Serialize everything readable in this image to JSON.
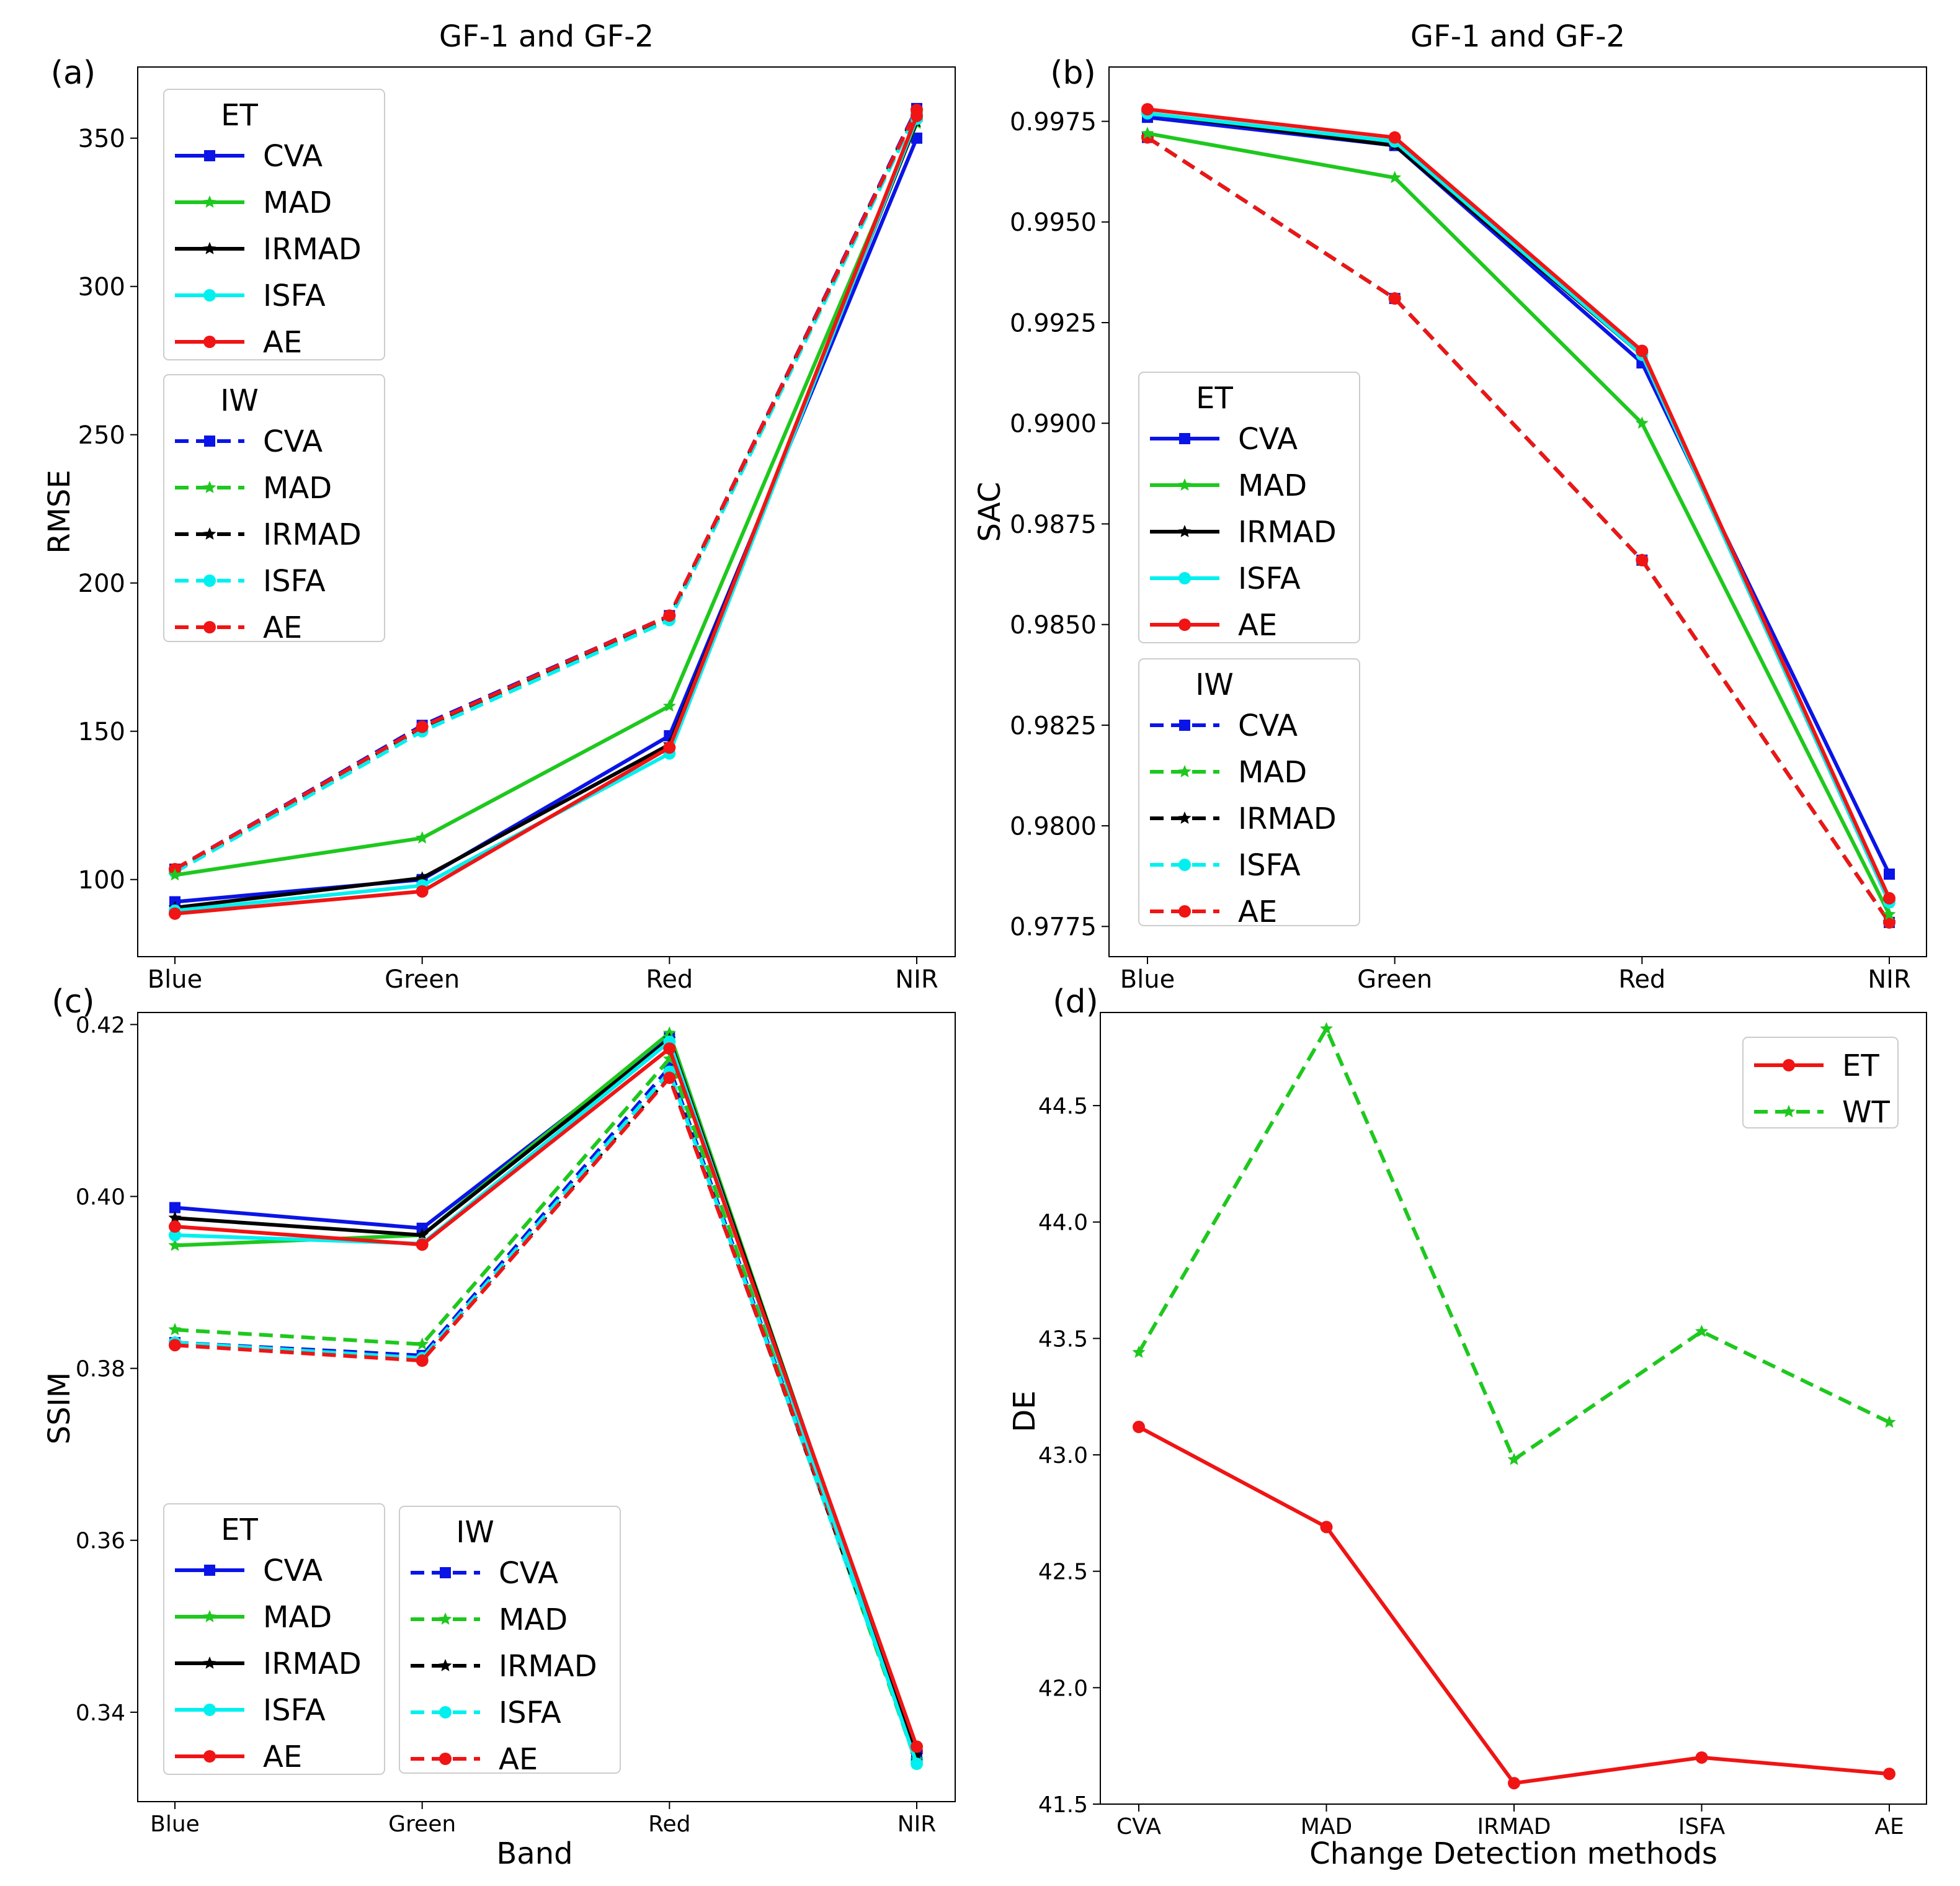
{
  "chart_data": [
    {
      "panel": "(a)",
      "type": "line",
      "title": "GF-1 and GF-2",
      "xlabel": "",
      "ylabel": "RMSE",
      "categories": [
        "Blue",
        "Green",
        "Red",
        "NIR"
      ],
      "ylim": [
        74,
        374
      ],
      "yticks": [
        100,
        150,
        200,
        250,
        300,
        350
      ],
      "ytick_labels": [
        "100",
        "150",
        "200",
        "250",
        "300",
        "350"
      ],
      "legend_groups": [
        {
          "title": "ET",
          "entries": [
            "CVA",
            "MAD",
            "IRMAD",
            "ISFA",
            "AE"
          ]
        },
        {
          "title": "IW",
          "entries": [
            "CVA",
            "MAD",
            "IRMAD",
            "ISFA",
            "AE"
          ]
        }
      ],
      "series": [
        {
          "group": "ET",
          "name": "CVA",
          "values": [
            92.5,
            100.0,
            148.5,
            350.0
          ]
        },
        {
          "group": "ET",
          "name": "MAD",
          "values": [
            101.5,
            114.0,
            158.5,
            355.0
          ]
        },
        {
          "group": "ET",
          "name": "IRMAD",
          "values": [
            90.5,
            100.5,
            145.5,
            355.5
          ]
        },
        {
          "group": "ET",
          "name": "ISFA",
          "values": [
            89.5,
            98.0,
            142.5,
            356.5
          ]
        },
        {
          "group": "ET",
          "name": "AE",
          "values": [
            88.5,
            96.0,
            144.5,
            357.5
          ]
        },
        {
          "group": "IW",
          "name": "CVA",
          "values": [
            103.5,
            152.0,
            189.0,
            360.0
          ]
        },
        {
          "group": "IW",
          "name": "MAD",
          "values": [
            103.0,
            151.0,
            188.0,
            359.0
          ]
        },
        {
          "group": "IW",
          "name": "IRMAD",
          "values": [
            103.0,
            151.0,
            188.5,
            359.5
          ]
        },
        {
          "group": "IW",
          "name": "ISFA",
          "values": [
            102.5,
            150.0,
            187.5,
            358.5
          ]
        },
        {
          "group": "IW",
          "name": "AE",
          "values": [
            103.5,
            151.5,
            189.0,
            359.5
          ]
        }
      ]
    },
    {
      "panel": "(b)",
      "type": "line",
      "title": "GF-1 and GF-2",
      "xlabel": "",
      "ylabel": "SAC",
      "categories": [
        "Blue",
        "Green",
        "Red",
        "NIR"
      ],
      "ylim": [
        0.97675,
        0.99885
      ],
      "yticks": [
        0.9775,
        0.98,
        0.9825,
        0.985,
        0.9875,
        0.99,
        0.9925,
        0.995,
        0.9975
      ],
      "ytick_labels": [
        "0.9775",
        "0.9800",
        "0.9825",
        "0.9850",
        "0.9875",
        "0.9900",
        "0.9925",
        "0.9950",
        "0.9975"
      ],
      "legend_groups": [
        {
          "title": "ET",
          "entries": [
            "CVA",
            "MAD",
            "IRMAD",
            "ISFA",
            "AE"
          ]
        },
        {
          "title": "IW",
          "entries": [
            "CVA",
            "MAD",
            "IRMAD",
            "ISFA",
            "AE"
          ]
        }
      ],
      "series": [
        {
          "group": "ET",
          "name": "CVA",
          "values": [
            0.9976,
            0.9969,
            0.9915,
            0.9788
          ]
        },
        {
          "group": "ET",
          "name": "MAD",
          "values": [
            0.9972,
            0.9961,
            0.99,
            0.9778
          ]
        },
        {
          "group": "ET",
          "name": "IRMAD",
          "values": [
            0.9977,
            0.9969,
            0.9917,
            0.9781
          ]
        },
        {
          "group": "ET",
          "name": "ISFA",
          "values": [
            0.9977,
            0.997,
            0.9917,
            0.9781
          ]
        },
        {
          "group": "ET",
          "name": "AE",
          "values": [
            0.9978,
            0.9971,
            0.9918,
            0.9782
          ]
        },
        {
          "group": "IW",
          "name": "CVA",
          "values": [
            0.9971,
            0.9931,
            0.9866,
            0.9776
          ]
        },
        {
          "group": "IW",
          "name": "MAD",
          "values": [
            0.9971,
            0.9931,
            0.9866,
            0.9776
          ]
        },
        {
          "group": "IW",
          "name": "IRMAD",
          "values": [
            0.9971,
            0.9931,
            0.9866,
            0.9776
          ]
        },
        {
          "group": "IW",
          "name": "ISFA",
          "values": [
            0.9971,
            0.9931,
            0.9866,
            0.9776
          ]
        },
        {
          "group": "IW",
          "name": "AE",
          "values": [
            0.9971,
            0.9931,
            0.9866,
            0.9776
          ]
        }
      ]
    },
    {
      "panel": "(c)",
      "type": "line",
      "title": "",
      "xlabel": "Band",
      "ylabel": "SSIM",
      "categories": [
        "Blue",
        "Green",
        "Red",
        "NIR"
      ],
      "ylim": [
        0.3296,
        0.4214
      ],
      "yticks": [
        0.34,
        0.36,
        0.38,
        0.4,
        0.42
      ],
      "ytick_labels": [
        "0.34",
        "0.36",
        "0.38",
        "0.40",
        "0.42"
      ],
      "legend_groups": [
        {
          "title": "ET",
          "entries": [
            "CVA",
            "MAD",
            "IRMAD",
            "ISFA",
            "AE"
          ]
        },
        {
          "title": "IW",
          "entries": [
            "CVA",
            "MAD",
            "IRMAD",
            "ISFA",
            "AE"
          ]
        }
      ],
      "series": [
        {
          "group": "ET",
          "name": "CVA",
          "values": [
            0.3987,
            0.3963,
            0.4185,
            0.335
          ]
        },
        {
          "group": "ET",
          "name": "MAD",
          "values": [
            0.3943,
            0.3955,
            0.419,
            0.3345
          ]
        },
        {
          "group": "ET",
          "name": "IRMAD",
          "values": [
            0.3975,
            0.3955,
            0.4183,
            0.335
          ]
        },
        {
          "group": "ET",
          "name": "ISFA",
          "values": [
            0.3955,
            0.3945,
            0.418,
            0.334
          ]
        },
        {
          "group": "ET",
          "name": "AE",
          "values": [
            0.3965,
            0.3944,
            0.4172,
            0.336
          ]
        },
        {
          "group": "IW",
          "name": "CVA",
          "values": [
            0.383,
            0.3815,
            0.415,
            0.3345
          ]
        },
        {
          "group": "IW",
          "name": "MAD",
          "values": [
            0.3845,
            0.3828,
            0.416,
            0.334
          ]
        },
        {
          "group": "IW",
          "name": "IRMAD",
          "values": [
            0.383,
            0.3812,
            0.414,
            0.335
          ]
        },
        {
          "group": "IW",
          "name": "ISFA",
          "values": [
            0.383,
            0.3812,
            0.4145,
            0.3345
          ]
        },
        {
          "group": "IW",
          "name": "AE",
          "values": [
            0.3827,
            0.3809,
            0.4138,
            0.3355
          ]
        }
      ]
    },
    {
      "panel": "(d)",
      "type": "line",
      "title": "",
      "xlabel": "Change Detection methods",
      "ylabel": "DE",
      "categories": [
        "CVA",
        "MAD",
        "IRMAD",
        "ISFA",
        "AE"
      ],
      "ylim": [
        41.5,
        44.9
      ],
      "yticks": [
        41.5,
        42.0,
        42.5,
        43.0,
        43.5,
        44.0,
        44.5
      ],
      "ytick_labels": [
        "41.5",
        "42.0",
        "42.5",
        "43.0",
        "43.5",
        "44.0",
        "44.5"
      ],
      "legend_groups": [
        {
          "title": "",
          "entries": [
            "ET",
            "WT"
          ]
        }
      ],
      "series": [
        {
          "name": "ET",
          "values": [
            43.12,
            42.69,
            41.59,
            41.7,
            41.63
          ]
        },
        {
          "name": "WT",
          "values": [
            43.44,
            44.83,
            42.98,
            43.53,
            43.14
          ]
        }
      ]
    }
  ]
}
